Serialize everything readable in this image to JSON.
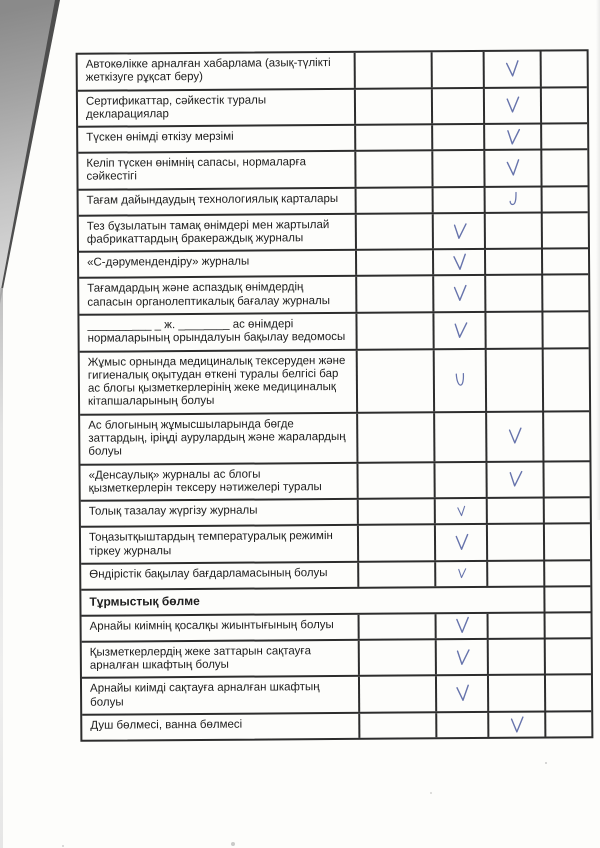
{
  "document": {
    "kind": "scanned checklist page (Kazakh), continuation of an inspection table",
    "language": "kk"
  },
  "colors": {
    "ink": "#5b69a6",
    "table_border": "#2d2d2d",
    "paper": "#fdfdfb"
  },
  "icons": {
    "checkmark": "handwritten blue check (V / U shaped pen stroke)"
  },
  "table": {
    "check_columns": 4,
    "rows": [
      {
        "label": "Автокөлікке арналған хабарлама (азық-түлікті\nжеткізуге рұқсат беру)",
        "check_col": 3,
        "mark": "v"
      },
      {
        "label": "Сертификаттар, сәйкестік туралы\nдекларациялар",
        "check_col": 3,
        "mark": "v"
      },
      {
        "label": "Түскен өнімді өткізу мерзімі",
        "check_col": 3,
        "mark": "v"
      },
      {
        "label": "Келіп түскен өнімнің сапасы, нормаларға\nсәйкестігі",
        "check_col": 3,
        "mark": "v"
      },
      {
        "label": "Тағам дайындаудың технологиялық карталары",
        "check_col": 3,
        "mark": "j"
      },
      {
        "label": "Тез бұзылатын тамақ өнімдері мен жартылай\nфабрикаттардың бракераждық журналы",
        "check_col": 2,
        "mark": "v"
      },
      {
        "label": "«С-дәрумендендіру» журналы",
        "check_col": 2,
        "mark": "v"
      },
      {
        "label": "Тағамдардың және аспаздық өнімдердің\nсапасын органолептикалық бағалау журналы",
        "check_col": 2,
        "mark": "v"
      },
      {
        "label": "__________ _ ж. ________ ас өнімдері\nнормаларының орындалуын бақылау ведомосы",
        "check_col": 2,
        "mark": "v"
      },
      {
        "label": "Жұмыс орнында медициналық тексеруден және\nгигиеналық оқытудан өткені туралы белгісі бар\nас блогы қызметкерлерінің жеке медициналық\nкітапшаларының болуы",
        "check_col": 2,
        "mark": "u"
      },
      {
        "label": "Ас блогының жұмысшыларында бөгде\nзаттардың, іріңді аурулардың және жаралардың\nболуы",
        "check_col": 3,
        "mark": "v"
      },
      {
        "label": "«Денсаулық» журналы ас блогы\nқызметкерлерін тексеру нәтижелері туралы",
        "check_col": 3,
        "mark": "v"
      },
      {
        "label": "Толық тазалау жүргізу журналы",
        "check_col": 2,
        "mark": "vs"
      },
      {
        "label": "Тоңазытқыштардың температуралық режимін\nтіркеу журналы",
        "check_col": 2,
        "mark": "v"
      },
      {
        "label": "Өндірістік бақылау бағдарламасының болуы",
        "check_col": 2,
        "mark": "vs"
      },
      {
        "label": "Тұрмыстық бөлме",
        "section": true
      },
      {
        "label": "Арнайы киімнің қосалқы жиынтығының болуы",
        "check_col": 2,
        "mark": "v"
      },
      {
        "label": "Қызметкерлердің жеке заттарын сақтауға\nарналған шкафтың болуы",
        "check_col": 2,
        "mark": "v"
      },
      {
        "label": "Арнайы киімді сақтауға арналған шкафтың\nболуы",
        "check_col": 2,
        "mark": "v"
      },
      {
        "label": "Душ бөлмесі, ванна бөлмесі",
        "check_col": 3,
        "mark": "v"
      }
    ]
  }
}
